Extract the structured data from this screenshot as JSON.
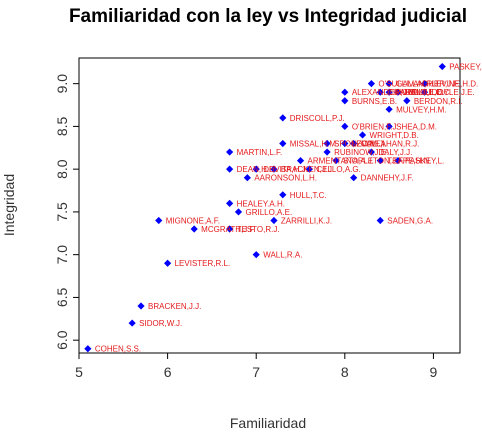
{
  "chart_data": {
    "type": "scatter",
    "title": "Familiaridad con la ley vs Integridad judicial",
    "xlabel": "Familiaridad",
    "ylabel": "Integridad",
    "xlim": [
      5,
      9.3
    ],
    "ylim": [
      5.85,
      9.3
    ],
    "xticks": [
      "5",
      "6",
      "7",
      "8",
      "9"
    ],
    "yticks": [
      "6.0",
      "6.5",
      "7.0",
      "7.5",
      "8.0",
      "8.5",
      "9.0"
    ],
    "grid": false,
    "legend": "none",
    "point_color": "#0000ff",
    "label_color": "#e41a1c",
    "points": [
      {
        "label": "COHEN,S.S.",
        "x": 5.1,
        "y": 5.9
      },
      {
        "label": "SIDOR,W.J.",
        "x": 5.6,
        "y": 6.2
      },
      {
        "label": "BRACKEN,J.J.",
        "x": 5.7,
        "y": 6.4
      },
      {
        "label": "LEVISTER,R.L.",
        "x": 6.0,
        "y": 6.9
      },
      {
        "label": "WALL,R.A.",
        "x": 7.0,
        "y": 7.0
      },
      {
        "label": "MCGRATH,J.F.",
        "x": 6.3,
        "y": 7.3
      },
      {
        "label": "TESTO,R.J.",
        "x": 6.7,
        "y": 7.3
      },
      {
        "label": "MIGNONE,A.F.",
        "x": 5.9,
        "y": 7.4
      },
      {
        "label": "ZARRILLI,K.J.",
        "x": 7.2,
        "y": 7.4
      },
      {
        "label": "SADEN,G.A.",
        "x": 8.4,
        "y": 7.4
      },
      {
        "label": "GRILLO,A.E.",
        "x": 6.8,
        "y": 7.5
      },
      {
        "label": "HEALEY.A.H.",
        "x": 6.7,
        "y": 7.6
      },
      {
        "label": "HULL,T.C.",
        "x": 7.3,
        "y": 7.7
      },
      {
        "label": "AARONSON,L.H.",
        "x": 6.9,
        "y": 7.9
      },
      {
        "label": "DANNEHY,J.F.",
        "x": 8.1,
        "y": 7.9
      },
      {
        "label": "DEAN,H.H.",
        "x": 6.7,
        "y": 8.0
      },
      {
        "label": "DEVITA,H.J.",
        "x": 7.0,
        "y": 8.0
      },
      {
        "label": "BRACKEN,J.J.",
        "x": 7.2,
        "y": 8.0
      },
      {
        "label": "CELLO,A.G.",
        "x": 7.6,
        "y": 8.0
      },
      {
        "label": "MARTIN,L.F.",
        "x": 6.7,
        "y": 8.2
      },
      {
        "label": "ARMENTANO,A.J.",
        "x": 7.5,
        "y": 8.1
      },
      {
        "label": "STAPLETON,J.F.",
        "x": 7.9,
        "y": 8.1
      },
      {
        "label": "TEAPE,H.N.",
        "x": 8.4,
        "y": 8.1
      },
      {
        "label": "RUBINOW,J.E.",
        "x": 7.8,
        "y": 8.2
      },
      {
        "label": "PASKEY,L.",
        "x": 8.6,
        "y": 8.1
      },
      {
        "label": "MISSAL,H.M.",
        "x": 7.3,
        "y": 8.3
      },
      {
        "label": "SPONZO,M.J.",
        "x": 7.8,
        "y": 8.3
      },
      {
        "label": "CALLAHAN,R.J.",
        "x": 8.1,
        "y": 8.3
      },
      {
        "label": "DALY,J.J.",
        "x": 8.3,
        "y": 8.2
      },
      {
        "label": "LEVINE,I.",
        "x": 8.0,
        "y": 8.3
      },
      {
        "label": "O'BRIEN,F.J.",
        "x": 8.0,
        "y": 8.5
      },
      {
        "label": "WRIGHT,D.B.",
        "x": 8.2,
        "y": 8.4
      },
      {
        "label": "SHEA,D.M.",
        "x": 8.5,
        "y": 8.5
      },
      {
        "label": "DRISCOLL,P.J.",
        "x": 7.3,
        "y": 8.6
      },
      {
        "label": "MULVEY,H.M.",
        "x": 8.5,
        "y": 8.7
      },
      {
        "label": "BURNS,E.B.",
        "x": 8.0,
        "y": 8.8
      },
      {
        "label": "BERDON,R.I.",
        "x": 8.7,
        "y": 8.8
      },
      {
        "label": "ALEXANDER,J.M.",
        "x": 8.0,
        "y": 8.9
      },
      {
        "label": "HAMILL,E.C.",
        "x": 8.6,
        "y": 8.9
      },
      {
        "label": "CIPARELLI,L.D.",
        "x": 8.4,
        "y": 8.9
      },
      {
        "label": "HUBALT,E.C.",
        "x": 8.5,
        "y": 8.9
      },
      {
        "label": "O'SULLIVAN,R.J.",
        "x": 8.3,
        "y": 9.0
      },
      {
        "label": "GALLAGHER,J.F.",
        "x": 8.5,
        "y": 9.0
      },
      {
        "label": "LEVINE,H.D.",
        "x": 8.9,
        "y": 9.0
      },
      {
        "label": "DOYLE,J.E.",
        "x": 8.9,
        "y": 8.9
      },
      {
        "label": "PASKEY,L.",
        "x": 9.1,
        "y": 9.2
      }
    ]
  }
}
